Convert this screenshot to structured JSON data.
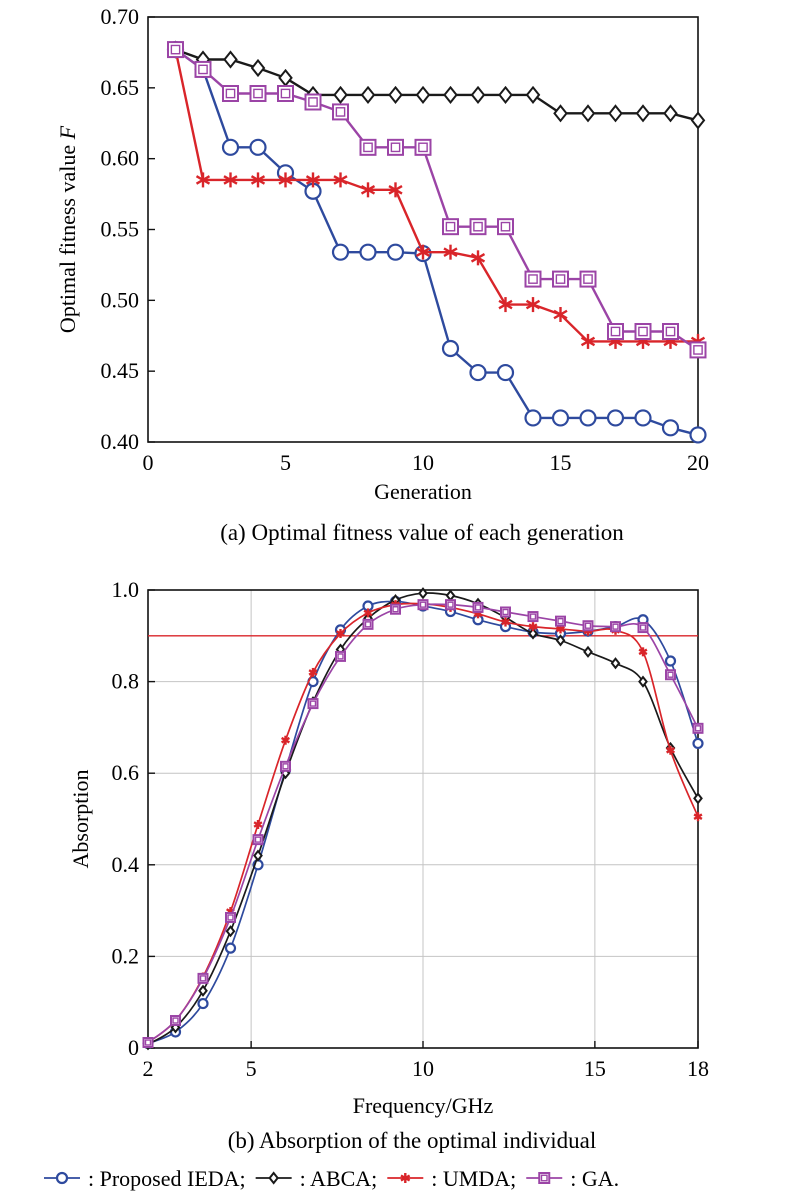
{
  "chart_data": [
    {
      "type": "line",
      "caption": "(a) Optimal fitness value of each generation",
      "xlabel": "Generation",
      "ylabel": "Optimal fitness value",
      "ylabel_var": "F",
      "xlim": [
        0,
        20
      ],
      "ylim": [
        0.4,
        0.7
      ],
      "xticks": [
        0,
        5,
        10,
        15,
        20
      ],
      "xtick_labels": [
        "0",
        "5",
        "10",
        "15",
        "20"
      ],
      "yticks": [
        0.4,
        0.45,
        0.5,
        0.55,
        0.6,
        0.65,
        0.7
      ],
      "ytick_labels": [
        "0.40",
        "0.45",
        "0.50",
        "0.55",
        "0.60",
        "0.65",
        "0.70"
      ],
      "grid": false,
      "x": [
        1,
        2,
        3,
        4,
        5,
        6,
        7,
        8,
        9,
        10,
        11,
        12,
        13,
        14,
        15,
        16,
        17,
        18,
        19,
        20
      ],
      "series": [
        {
          "key": "ieda",
          "values": [
            0.677,
            0.663,
            0.608,
            0.608,
            0.59,
            0.577,
            0.534,
            0.534,
            0.534,
            0.533,
            0.466,
            0.449,
            0.449,
            0.417,
            0.417,
            0.417,
            0.417,
            0.417,
            0.41,
            0.405
          ]
        },
        {
          "key": "abca",
          "values": [
            0.677,
            0.67,
            0.67,
            0.664,
            0.657,
            0.645,
            0.645,
            0.645,
            0.645,
            0.645,
            0.645,
            0.645,
            0.645,
            0.645,
            0.632,
            0.632,
            0.632,
            0.632,
            0.632,
            0.627
          ]
        },
        {
          "key": "umda",
          "values": [
            0.677,
            0.585,
            0.585,
            0.585,
            0.585,
            0.585,
            0.585,
            0.578,
            0.578,
            0.534,
            0.534,
            0.53,
            0.497,
            0.497,
            0.49,
            0.471,
            0.471,
            0.471,
            0.471,
            0.471
          ]
        },
        {
          "key": "ga",
          "values": [
            0.677,
            0.663,
            0.646,
            0.646,
            0.646,
            0.64,
            0.633,
            0.608,
            0.608,
            0.608,
            0.552,
            0.552,
            0.552,
            0.515,
            0.515,
            0.515,
            0.478,
            0.478,
            0.478,
            0.465
          ]
        }
      ]
    },
    {
      "type": "line",
      "caption": "(b) Absorption of the optimal individual",
      "xlabel": "Frequency/GHz",
      "ylabel": "Absorption",
      "xlim": [
        2,
        18
      ],
      "ylim": [
        0,
        1.0
      ],
      "xticks": [
        2,
        5,
        10,
        15,
        18
      ],
      "xtick_labels": [
        "2",
        "5",
        "10",
        "15",
        "18"
      ],
      "yticks": [
        0,
        0.2,
        0.4,
        0.6,
        0.8,
        1.0
      ],
      "ytick_labels": [
        "0",
        "0.2",
        "0.4",
        "0.6",
        "0.8",
        "1.0"
      ],
      "grid": true,
      "reference_line": {
        "y": 0.9,
        "color": "#d9252a"
      },
      "x": [
        2.0,
        2.8,
        3.6,
        4.4,
        5.2,
        6.0,
        6.8,
        7.6,
        8.4,
        9.2,
        10.0,
        10.8,
        11.6,
        12.4,
        13.2,
        14.0,
        14.8,
        15.6,
        16.4,
        17.2,
        18.0
      ],
      "series": [
        {
          "key": "ieda",
          "values": [
            0.01,
            0.035,
            0.097,
            0.218,
            0.4,
            0.607,
            0.8,
            0.913,
            0.965,
            0.975,
            0.965,
            0.953,
            0.935,
            0.92,
            0.908,
            0.905,
            0.91,
            0.92,
            0.935,
            0.845,
            0.665
          ]
        },
        {
          "key": "abca",
          "values": [
            0.008,
            0.045,
            0.125,
            0.255,
            0.42,
            0.6,
            0.755,
            0.87,
            0.938,
            0.978,
            0.993,
            0.988,
            0.97,
            0.94,
            0.905,
            0.89,
            0.865,
            0.84,
            0.8,
            0.655,
            0.545
          ]
        },
        {
          "key": "umda",
          "values": [
            0.012,
            0.06,
            0.155,
            0.298,
            0.488,
            0.672,
            0.82,
            0.905,
            0.95,
            0.968,
            0.97,
            0.962,
            0.948,
            0.93,
            0.92,
            0.915,
            0.91,
            0.912,
            0.865,
            0.65,
            0.505
          ]
        },
        {
          "key": "ga",
          "values": [
            0.012,
            0.06,
            0.152,
            0.285,
            0.455,
            0.615,
            0.752,
            0.855,
            0.925,
            0.958,
            0.968,
            0.968,
            0.962,
            0.952,
            0.942,
            0.932,
            0.922,
            0.92,
            0.918,
            0.815,
            0.698
          ]
        }
      ]
    }
  ],
  "legend": {
    "placement": "bottom",
    "entries": [
      {
        "key": "ieda",
        "label": ": Proposed IEDA;",
        "color": "#2e4a9e",
        "marker": "circle"
      },
      {
        "key": "abca",
        "label": ": ABCA;",
        "color": "#1a1a1a",
        "marker": "diamond"
      },
      {
        "key": "umda",
        "label": ": UMDA;",
        "color": "#d9252a",
        "marker": "asterisk"
      },
      {
        "key": "ga",
        "label": ": GA.",
        "color": "#9b44a6",
        "marker": "square"
      }
    ]
  }
}
